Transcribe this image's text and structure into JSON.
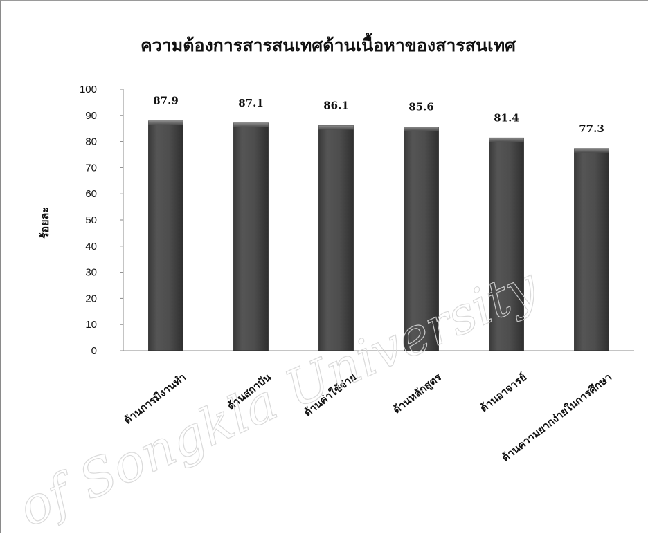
{
  "chart_data": {
    "type": "bar",
    "title": "ความต้องการสารสนเทศด้านเนื้อหาของสารสนเทศ",
    "ylabel": "ร้อยละ",
    "xlabel": "",
    "ylim": [
      0,
      100
    ],
    "yticks": [
      "0",
      "10",
      "20",
      "30",
      "40",
      "50",
      "60",
      "70",
      "80",
      "90",
      "100"
    ],
    "categories": [
      "ด้านการมีงานทำ",
      "ด้านสถาบัน",
      "ด้านค่าใช้จ่าย",
      "ด้านหลักสูตร",
      "ด้านอาจารย์",
      "ด้านความยากง่ายในการศึกษา"
    ],
    "values": [
      87.9,
      87.1,
      86.1,
      85.6,
      81.4,
      77.3
    ],
    "value_labels": [
      "87.9",
      "87.1",
      "86.1",
      "85.6",
      "81.4",
      "77.3"
    ],
    "bar_color": "#4a4a4a",
    "grid": false,
    "legend": "none",
    "watermark": "of Songkla University"
  }
}
